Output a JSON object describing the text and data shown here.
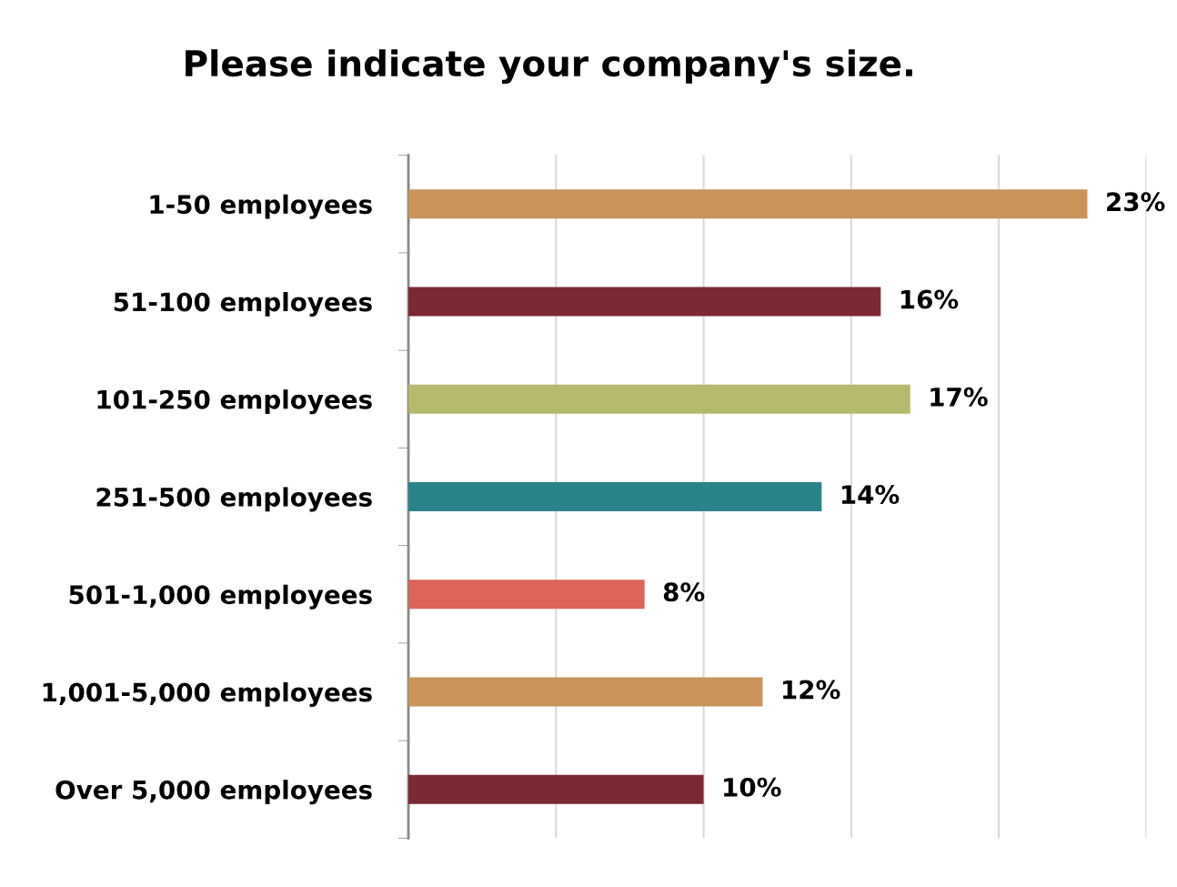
{
  "chart_data": {
    "type": "bar",
    "orientation": "horizontal",
    "title": "Please indicate your company's size.",
    "categories": [
      "1-50 employees",
      "51-100 employees",
      "101-250 employees",
      "251-500 employees",
      "501-1,000 employees",
      "1,001-5,000 employees",
      "Over 5,000 employees"
    ],
    "values": [
      23,
      16,
      17,
      14,
      8,
      12,
      10
    ],
    "colors": [
      "#c9935a",
      "#7b2934",
      "#b5b96b",
      "#2b838a",
      "#dc6459",
      "#c9935a",
      "#7b2934"
    ],
    "value_labels": [
      "23%",
      "16%",
      "17%",
      "14%",
      "8%",
      "12%",
      "10%"
    ],
    "xlim": [
      0,
      25
    ],
    "xticks": [
      {
        "value": 0,
        "label": null
      },
      {
        "value": 5,
        "label": null
      },
      {
        "value": 10,
        "label": null
      },
      {
        "value": 15,
        "label": null
      },
      {
        "value": 20,
        "label": null
      },
      {
        "value": 25,
        "label": null
      }
    ],
    "grid": "x",
    "tick_labels": "y",
    "legend": false
  }
}
